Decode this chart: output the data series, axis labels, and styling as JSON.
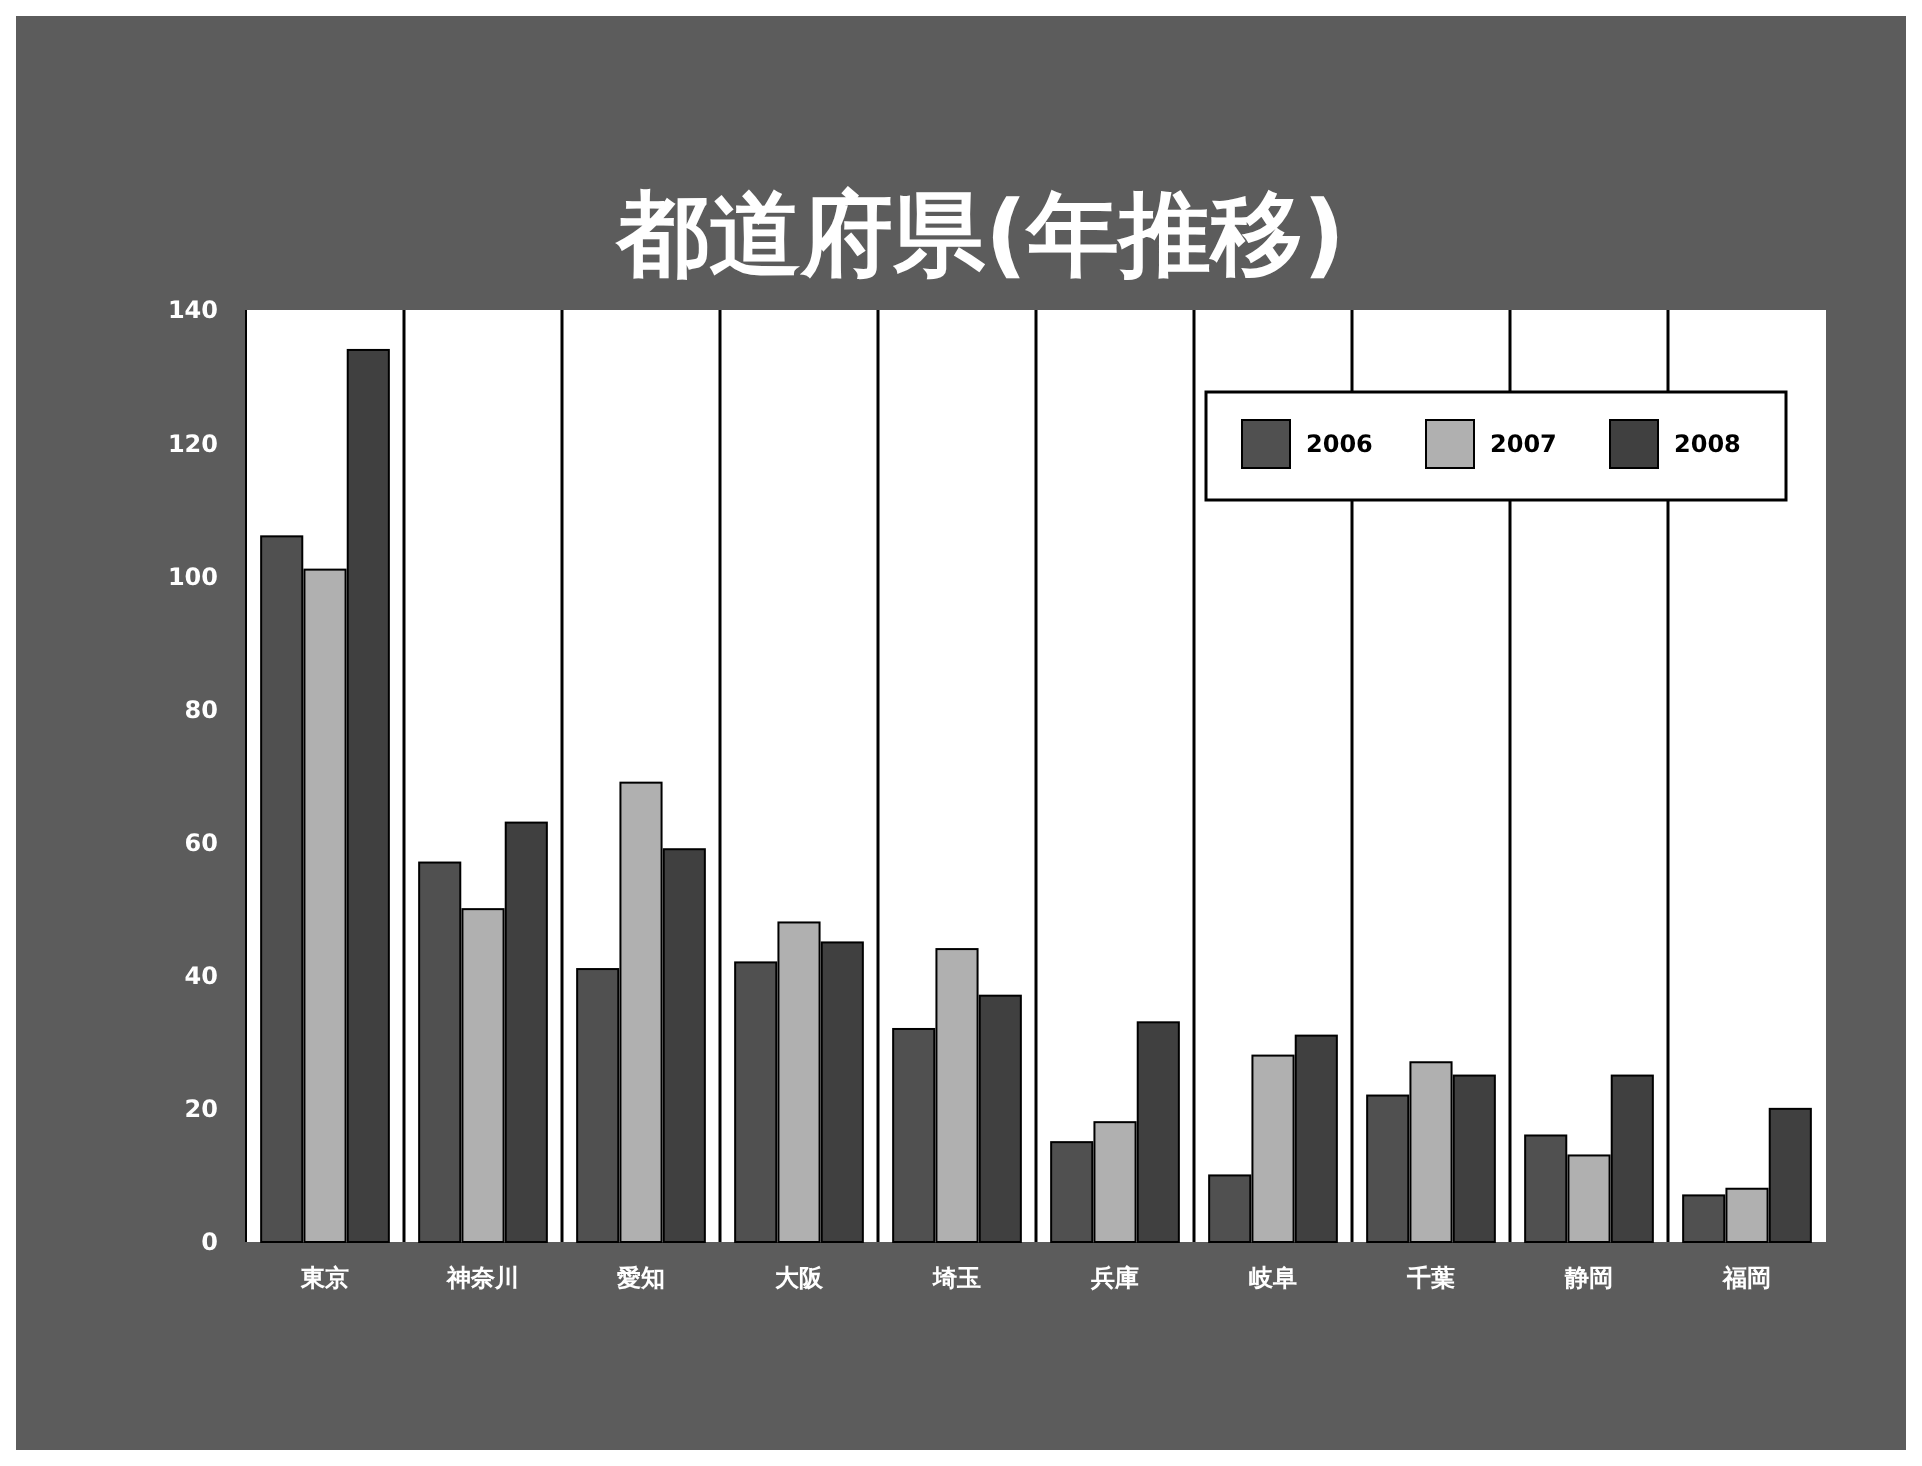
{
  "chart_data": {
    "type": "bar",
    "title": "都道府県(年推移)",
    "categories": [
      "東京",
      "神奈川",
      "愛知",
      "大阪",
      "埼玉",
      "兵庫",
      "岐阜",
      "千葉",
      "静岡",
      "福岡"
    ],
    "series": [
      {
        "name": "2006",
        "color": "#505050",
        "values": [
          106,
          57,
          41,
          42,
          32,
          15,
          10,
          22,
          16,
          7
        ]
      },
      {
        "name": "2007",
        "color": "#b0b0b0",
        "values": [
          101,
          50,
          69,
          48,
          44,
          18,
          28,
          27,
          13,
          8
        ]
      },
      {
        "name": "2008",
        "color": "#404040",
        "values": [
          134,
          63,
          59,
          45,
          37,
          33,
          31,
          25,
          25,
          20
        ]
      }
    ],
    "ylim": [
      0,
      140
    ],
    "yticks": [
      0,
      20,
      40,
      60,
      80,
      100,
      120,
      140
    ],
    "legend": "top right"
  }
}
